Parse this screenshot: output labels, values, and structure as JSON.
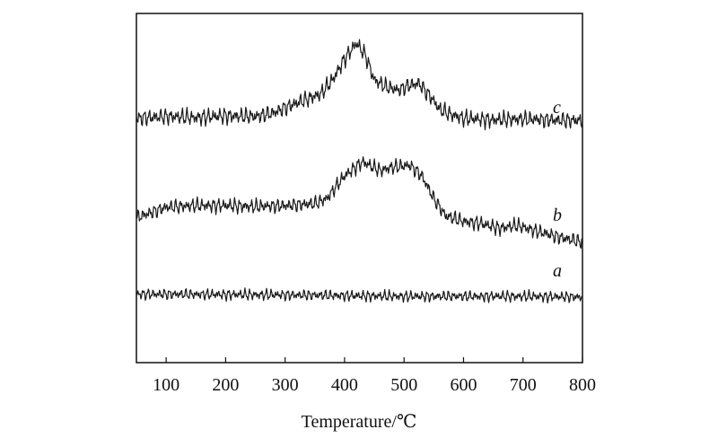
{
  "chart_data": {
    "type": "line",
    "title": "",
    "xlabel": "Temperature/℃",
    "ylabel": "",
    "xlim": [
      50,
      800
    ],
    "ylim": [
      0,
      1
    ],
    "x_ticks": [
      100,
      200,
      300,
      400,
      500,
      600,
      700,
      800
    ],
    "grid": false,
    "legend": "none",
    "series_label_color": "#111111",
    "line_color": "#1a1a1a",
    "series": [
      {
        "name": "a",
        "noise": 0.012,
        "points": [
          [
            50,
            0.196
          ],
          [
            100,
            0.196
          ],
          [
            200,
            0.195
          ],
          [
            300,
            0.194
          ],
          [
            400,
            0.192
          ],
          [
            500,
            0.19
          ],
          [
            600,
            0.19
          ],
          [
            700,
            0.19
          ],
          [
            800,
            0.188
          ]
        ]
      },
      {
        "name": "b",
        "noise": 0.016,
        "points": [
          [
            50,
            0.415
          ],
          [
            100,
            0.445
          ],
          [
            150,
            0.45
          ],
          [
            200,
            0.45
          ],
          [
            250,
            0.447
          ],
          [
            300,
            0.45
          ],
          [
            350,
            0.455
          ],
          [
            370,
            0.47
          ],
          [
            400,
            0.535
          ],
          [
            430,
            0.575
          ],
          [
            460,
            0.55
          ],
          [
            480,
            0.56
          ],
          [
            510,
            0.565
          ],
          [
            530,
            0.535
          ],
          [
            550,
            0.47
          ],
          [
            570,
            0.42
          ],
          [
            600,
            0.405
          ],
          [
            630,
            0.398
          ],
          [
            660,
            0.385
          ],
          [
            690,
            0.393
          ],
          [
            720,
            0.378
          ],
          [
            760,
            0.36
          ],
          [
            800,
            0.345
          ]
        ]
      },
      {
        "name": "c",
        "noise": 0.018,
        "points": [
          [
            50,
            0.7
          ],
          [
            100,
            0.705
          ],
          [
            150,
            0.702
          ],
          [
            200,
            0.707
          ],
          [
            250,
            0.705
          ],
          [
            280,
            0.715
          ],
          [
            300,
            0.73
          ],
          [
            330,
            0.75
          ],
          [
            360,
            0.77
          ],
          [
            380,
            0.81
          ],
          [
            400,
            0.87
          ],
          [
            420,
            0.915
          ],
          [
            435,
            0.88
          ],
          [
            450,
            0.81
          ],
          [
            470,
            0.79
          ],
          [
            490,
            0.78
          ],
          [
            510,
            0.795
          ],
          [
            525,
            0.8
          ],
          [
            545,
            0.76
          ],
          [
            560,
            0.725
          ],
          [
            580,
            0.71
          ],
          [
            600,
            0.7
          ],
          [
            650,
            0.695
          ],
          [
            700,
            0.698
          ],
          [
            750,
            0.695
          ],
          [
            800,
            0.693
          ]
        ]
      }
    ]
  }
}
